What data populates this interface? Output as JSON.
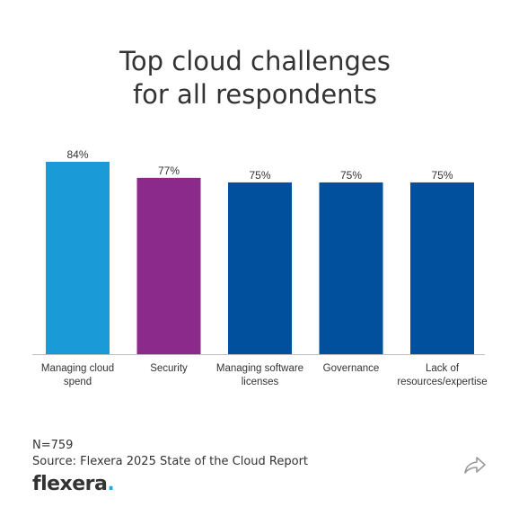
{
  "chart_data": {
    "type": "bar",
    "title_line1": "Top cloud challenges",
    "title_line2": "for all respondents",
    "categories": [
      [
        "Managing cloud",
        "spend"
      ],
      [
        "Security"
      ],
      [
        "Managing software",
        "licenses"
      ],
      [
        "Governance"
      ],
      [
        "Lack of",
        "resources/expertise"
      ]
    ],
    "values": [
      84,
      77,
      75,
      75,
      75
    ],
    "value_labels": [
      "84%",
      "77%",
      "75%",
      "75%",
      "75%"
    ],
    "colors": [
      "#1a9bd7",
      "#8b2a8b",
      "#00509e",
      "#00509e",
      "#00509e"
    ],
    "ylim": [
      0,
      84
    ],
    "grid": false,
    "legend": "none"
  },
  "footer": {
    "n": "N=759",
    "source": "Source: Flexera 2025 State of the Cloud Report",
    "logo_text": "flexera",
    "logo_dot": "."
  },
  "icons": {
    "share": "share-arrow-icon"
  }
}
